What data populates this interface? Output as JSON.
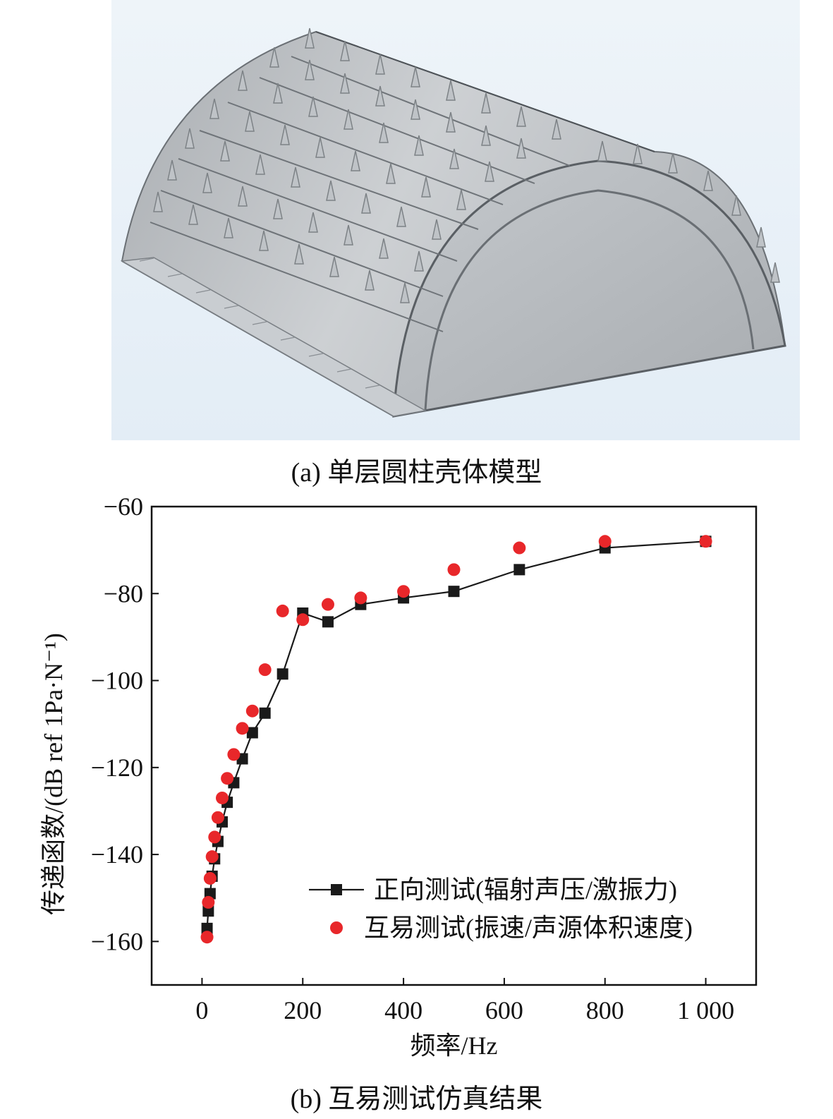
{
  "panel_a": {
    "caption": "(a) 单层圆柱壳体模型",
    "colors": {
      "background": "#e6eef6",
      "shell": "#b9bdc1",
      "edge": "#5a5f64"
    }
  },
  "panel_b": {
    "caption": "(b) 互易测试仿真结果"
  },
  "chart_data": {
    "type": "scatter",
    "title": "",
    "xlabel": "频率/Hz",
    "ylabel": "传递函数/(dB ref 1Pa·N⁻¹)",
    "xlim": [
      -100,
      1100
    ],
    "ylim": [
      -170,
      -60
    ],
    "x_ticks": [
      {
        "value": 0,
        "label": "0"
      },
      {
        "value": 200,
        "label": "200"
      },
      {
        "value": 400,
        "label": "400"
      },
      {
        "value": 600,
        "label": "600"
      },
      {
        "value": 800,
        "label": "800"
      },
      {
        "value": 1000,
        "label": "1 000"
      }
    ],
    "y_ticks": [
      {
        "value": -60,
        "label": "−60"
      },
      {
        "value": -80,
        "label": "−80"
      },
      {
        "value": -100,
        "label": "−100"
      },
      {
        "value": -120,
        "label": "−120"
      },
      {
        "value": -140,
        "label": "−140"
      },
      {
        "value": -160,
        "label": "−160"
      }
    ],
    "grid": false,
    "legend_position": "bottom-right",
    "series": [
      {
        "name": "正向测试(辐射声压/激振力)",
        "marker": "square-line",
        "color": "#1a1a1a",
        "x": [
          10,
          12.5,
          16,
          20,
          25,
          31.5,
          40,
          50,
          63,
          80,
          100,
          125,
          160,
          200,
          250,
          315,
          400,
          500,
          630,
          800,
          1000
        ],
        "y": [
          -157,
          -153,
          -149,
          -145,
          -141,
          -137,
          -132.5,
          -128,
          -123.5,
          -118,
          -112,
          -107.5,
          -98.5,
          -84.5,
          -86.5,
          -82.5,
          -81,
          -79.5,
          -74.5,
          -69.5,
          -68
        ]
      },
      {
        "name": "互易测试(振速/声源体积速度)",
        "marker": "circle",
        "color": "#e8272a",
        "x": [
          10,
          12.5,
          16,
          20,
          25,
          31.5,
          40,
          50,
          63,
          80,
          100,
          125,
          160,
          200,
          250,
          315,
          400,
          500,
          630,
          800,
          1000
        ],
        "y": [
          -159,
          -151,
          -145.5,
          -140.5,
          -136,
          -131.5,
          -127,
          -122.5,
          -117,
          -111,
          -107,
          -97.5,
          -84,
          -86,
          -82.5,
          -81,
          -79.5,
          -74.5,
          -69.5,
          -68,
          -68
        ]
      }
    ]
  }
}
